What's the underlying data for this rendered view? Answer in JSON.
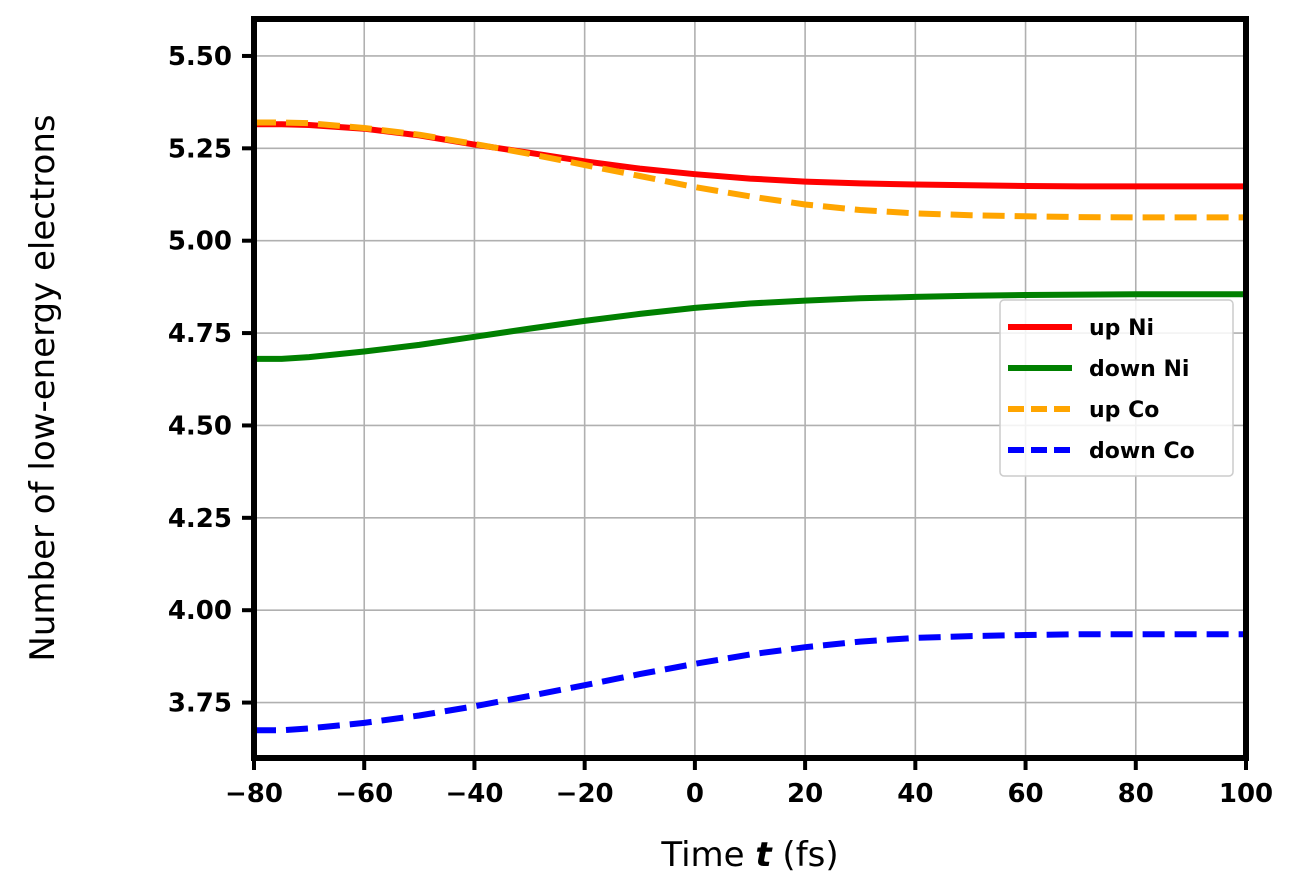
{
  "chart_data": {
    "type": "line",
    "xlabel_prefix": "Time ",
    "xlabel_var": "t",
    "xlabel_suffix": " (fs)",
    "ylabel": "Number of low-energy electrons",
    "xlim": [
      -80,
      100
    ],
    "ylim": [
      3.6,
      5.6
    ],
    "xticks": [
      -80,
      -60,
      -40,
      -20,
      0,
      20,
      40,
      60,
      80,
      100
    ],
    "xtick_labels": [
      "−80",
      "−60",
      "−40",
      "−20",
      "0",
      "20",
      "40",
      "60",
      "80",
      "100"
    ],
    "yticks": [
      3.75,
      4.0,
      4.25,
      4.5,
      4.75,
      5.0,
      5.25,
      5.5
    ],
    "ytick_labels": [
      "3.75",
      "4.00",
      "4.25",
      "4.50",
      "4.75",
      "5.00",
      "5.25",
      "5.50"
    ],
    "grid": true,
    "legend_position": "center-right",
    "x": [
      -80,
      -75,
      -70,
      -60,
      -50,
      -40,
      -30,
      -20,
      -10,
      0,
      10,
      20,
      30,
      40,
      50,
      60,
      70,
      80,
      90,
      100
    ],
    "series": [
      {
        "name": "up Ni",
        "color": "#ff0000",
        "style": "solid",
        "values": [
          5.315,
          5.315,
          5.313,
          5.303,
          5.285,
          5.26,
          5.238,
          5.215,
          5.195,
          5.18,
          5.168,
          5.16,
          5.155,
          5.152,
          5.15,
          5.148,
          5.147,
          5.147,
          5.147,
          5.147
        ]
      },
      {
        "name": "down Ni",
        "color": "#008000",
        "style": "solid",
        "values": [
          4.68,
          4.68,
          4.685,
          4.7,
          4.718,
          4.74,
          4.762,
          4.783,
          4.802,
          4.818,
          4.83,
          4.838,
          4.844,
          4.848,
          4.851,
          4.853,
          4.854,
          4.855,
          4.855,
          4.855
        ]
      },
      {
        "name": "up Co",
        "color": "#ffa500",
        "style": "dashed",
        "values": [
          5.32,
          5.32,
          5.318,
          5.305,
          5.287,
          5.262,
          5.235,
          5.205,
          5.175,
          5.145,
          5.12,
          5.098,
          5.083,
          5.074,
          5.069,
          5.066,
          5.064,
          5.063,
          5.063,
          5.063
        ]
      },
      {
        "name": "down Co",
        "color": "#0000ff",
        "style": "dashed",
        "values": [
          3.675,
          3.675,
          3.68,
          3.695,
          3.715,
          3.74,
          3.768,
          3.797,
          3.827,
          3.855,
          3.88,
          3.9,
          3.915,
          3.925,
          3.93,
          3.933,
          3.935,
          3.935,
          3.935,
          3.935
        ]
      }
    ]
  }
}
